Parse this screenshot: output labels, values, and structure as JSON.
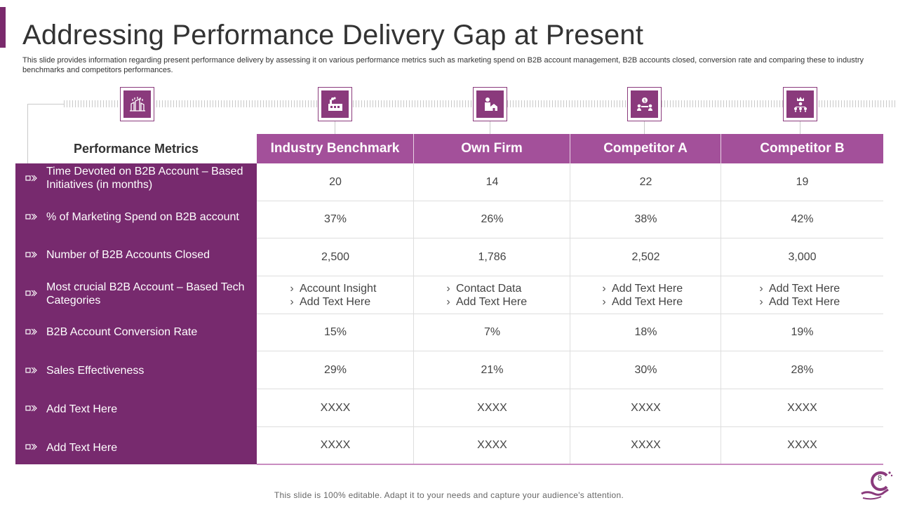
{
  "header": {
    "title": "Addressing Performance Delivery Gap at Present",
    "subtitle": "This slide provides information regarding present performance delivery by assessing it on various performance metrics such as marketing spend on B2B account management, B2B accounts closed, conversion rate and comparing these to industry benchmarks and competitors performances."
  },
  "table": {
    "metrics_header": "Performance Metrics",
    "columns": [
      {
        "label": "Industry Benchmark",
        "icon": "factory-icon"
      },
      {
        "label": "Own Firm",
        "icon": "person-home-icon"
      },
      {
        "label": "Competitor A",
        "icon": "meeting-dollar-icon"
      },
      {
        "label": "Competitor B",
        "icon": "crown-hierarchy-icon"
      }
    ],
    "metrics_icon": "building-network-icon",
    "rows": [
      {
        "metric": "Time Devoted on B2B Account – Based Initiatives (in months)",
        "values": [
          "20",
          "14",
          "22",
          "19"
        ]
      },
      {
        "metric": "% of Marketing Spend on B2B account",
        "values": [
          "37%",
          "26%",
          "38%",
          "42%"
        ]
      },
      {
        "metric": "Number of B2B Accounts Closed",
        "values": [
          "2,500",
          "1,786",
          "2,502",
          "3,000"
        ]
      },
      {
        "metric": "Most crucial B2B Account – Based Tech Categories",
        "lists": [
          [
            "Account Insight",
            "Add Text Here"
          ],
          [
            "Contact Data",
            "Add Text Here"
          ],
          [
            "Add Text Here",
            "Add Text Here"
          ],
          [
            "Add Text Here",
            "Add Text Here"
          ]
        ]
      },
      {
        "metric": "B2B Account Conversion Rate",
        "values": [
          "15%",
          "7%",
          "18%",
          "19%"
        ]
      },
      {
        "metric": "Sales Effectiveness",
        "values": [
          "29%",
          "21%",
          "30%",
          "28%"
        ]
      },
      {
        "metric": "Add Text Here",
        "values": [
          "XXXX",
          "XXXX",
          "XXXX",
          "XXXX"
        ]
      },
      {
        "metric": "Add Text Here",
        "values": [
          "XXXX",
          "XXXX",
          "XXXX",
          "XXXX"
        ]
      }
    ]
  },
  "footer": {
    "note": "This slide is 100% editable. Adapt it to your needs and capture your audience's attention.",
    "page_number": "8"
  },
  "colors": {
    "primary_dark": "#772a6e",
    "header_purple": "#a3509a",
    "icon_purple": "#8a3a7c"
  }
}
